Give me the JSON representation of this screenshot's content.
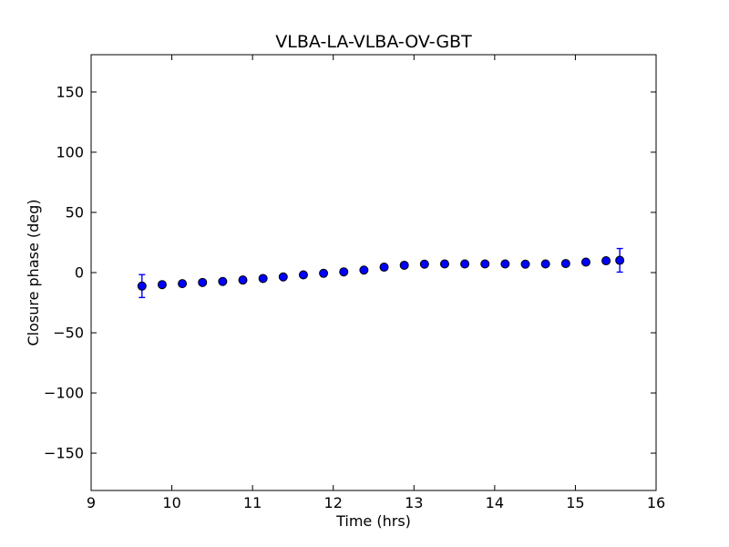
{
  "chart_data": {
    "type": "scatter",
    "title": "VLBA-LA-VLBA-OV-GBT",
    "xlabel": "Time (hrs)",
    "ylabel": "Closure phase (deg)",
    "xlim": [
      9,
      16
    ],
    "ylim": [
      -181,
      181
    ],
    "xticks": [
      9,
      10,
      11,
      12,
      13,
      14,
      15,
      16
    ],
    "yticks": [
      -150,
      -100,
      -50,
      0,
      50,
      100,
      150
    ],
    "grid": false,
    "legend": null,
    "marker_color": "#0000ff",
    "marker_edge_color": "#000000",
    "series": [
      {
        "name": "closure phase",
        "x": [
          9.63,
          9.88,
          10.13,
          10.38,
          10.63,
          10.88,
          11.13,
          11.38,
          11.63,
          11.88,
          12.13,
          12.38,
          12.63,
          12.88,
          13.13,
          13.38,
          13.63,
          13.88,
          14.13,
          14.38,
          14.63,
          14.88,
          15.13,
          15.38,
          15.55
        ],
        "y": [
          -11.2,
          -10.0,
          -9.2,
          -8.2,
          -7.4,
          -6.2,
          -4.9,
          -3.6,
          -1.9,
          -0.6,
          0.6,
          2.1,
          4.5,
          6.1,
          7.0,
          7.2,
          7.2,
          7.2,
          7.2,
          7.0,
          7.2,
          7.5,
          8.7,
          9.8,
          10.2
        ],
        "yerr": [
          9.5,
          1.5,
          1.5,
          1.5,
          1.5,
          1.5,
          1.5,
          1.5,
          1.5,
          1.5,
          1.5,
          1.5,
          1.5,
          1.5,
          1.5,
          1.5,
          1.5,
          1.5,
          1.5,
          1.5,
          1.5,
          1.5,
          1.5,
          1.5,
          9.8
        ]
      }
    ]
  }
}
